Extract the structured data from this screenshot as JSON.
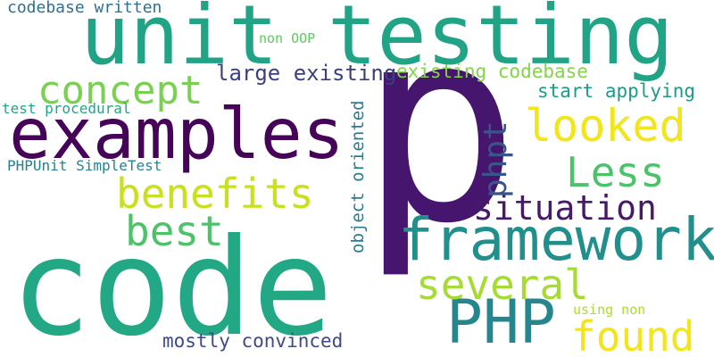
{
  "words": [
    {
      "id": "p",
      "text": "p",
      "color": "#46166e"
    },
    {
      "id": "code",
      "text": "code",
      "color": "#22a884"
    },
    {
      "id": "unit-testing",
      "text": "unit testing",
      "color": "#21a386"
    },
    {
      "id": "examples",
      "text": "examples",
      "color": "#450457"
    },
    {
      "id": "framework",
      "text": "framework",
      "color": "#218f8c"
    },
    {
      "id": "php",
      "text": "PHP",
      "color": "#25878d"
    },
    {
      "id": "benefits",
      "text": "benefits",
      "color": "#c9e020"
    },
    {
      "id": "concept",
      "text": "concept",
      "color": "#7ad151"
    },
    {
      "id": "looked",
      "text": "looked",
      "color": "#f1e51d"
    },
    {
      "id": "less",
      "text": "Less",
      "color": "#4bc36b"
    },
    {
      "id": "best",
      "text": "best",
      "color": "#4dc26b"
    },
    {
      "id": "several",
      "text": "several",
      "color": "#a6db35"
    },
    {
      "id": "found",
      "text": "found",
      "color": "#f2e51d"
    },
    {
      "id": "situation",
      "text": "situation",
      "color": "#48186a"
    },
    {
      "id": "phpt",
      "text": "phpt",
      "color": "#3a548c"
    },
    {
      "id": "large-existing",
      "text": "large existing",
      "color": "#3b3f82"
    },
    {
      "id": "existing-codebase",
      "text": "existing codebase",
      "color": "#84d44b"
    },
    {
      "id": "start-applying",
      "text": "start applying",
      "color": "#1e9b8a"
    },
    {
      "id": "mostly-convinced",
      "text": "mostly convinced",
      "color": "#3e4989"
    },
    {
      "id": "codebase-written",
      "text": "codebase written",
      "color": "#2d718e"
    },
    {
      "id": "object-oriented",
      "text": "object oriented",
      "color": "#287c8e"
    },
    {
      "id": "non-oop",
      "text": "non OOP",
      "color": "#5ec962"
    },
    {
      "id": "test-procedural",
      "text": "test procedural",
      "color": "#21a685"
    },
    {
      "id": "phpunit-simpletest",
      "text": "PHPUnit SimpleTest",
      "color": "#26828e"
    },
    {
      "id": "using-non",
      "text": "using non",
      "color": "#aadc32"
    }
  ]
}
